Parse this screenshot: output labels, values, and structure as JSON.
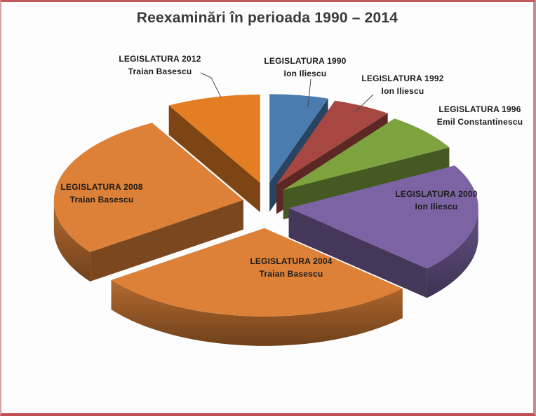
{
  "page": {
    "background": "#fdfdfd",
    "frame_border_color": "#c0504d"
  },
  "chart_data": {
    "type": "pie",
    "variant": "3d-exploded",
    "title": "Reexaminări în perioada 1990 – 2014",
    "legend": "none",
    "value_labels_shown": false,
    "values_estimated": true,
    "values_note": "No numeric data labels are visible in the chart; value_pct is estimated from slice angles",
    "slices": [
      {
        "label": "LEGISLATURA 1990",
        "president": "Ion Iliescu",
        "value_pct": 5,
        "color": "#4b7cb0"
      },
      {
        "label": "LEGISLATURA 1992",
        "president": "Ion Iliescu",
        "value_pct": 5,
        "color": "#a74742"
      },
      {
        "label": "LEGISLATURA 1996",
        "president": "Emil Constantinescu",
        "value_pct": 7,
        "color": "#7ea33e"
      },
      {
        "label": "LEGISLATURA 2000",
        "president": "Ion Iliescu",
        "value_pct": 20,
        "color": "#7c64a4"
      },
      {
        "label": "LEGISLATURA 2004",
        "president": "Traian Basescu",
        "value_pct": 28,
        "color": "#dd8138"
      },
      {
        "label": "LEGISLATURA 2008",
        "president": "Traian Basescu",
        "value_pct": 27,
        "color": "#dd8138"
      },
      {
        "label": "LEGISLATURA  2012",
        "president": "Traian Basescu",
        "value_pct": 8,
        "color": "#e47e24"
      }
    ]
  }
}
